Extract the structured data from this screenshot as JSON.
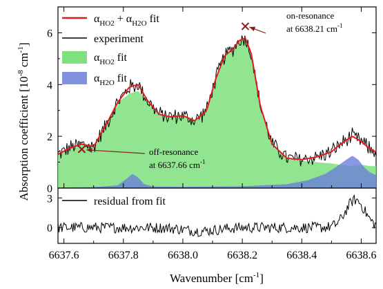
{
  "chart_data": [
    {
      "type": "area",
      "panel": "main",
      "ylabel": "Absorption coefficient [10-8 cm-1]",
      "ylabel_parts": {
        "main": "Absorption coefficient [10",
        "sup1": "-8",
        "mid": " cm",
        "sup2": "-1",
        "end": "]"
      },
      "xlim": [
        6637.58,
        6638.65
      ],
      "ylim": [
        0,
        7
      ],
      "y_ticks": [
        0,
        2,
        4,
        6
      ],
      "y_tick_labels": [
        "0",
        "2",
        "4",
        "6"
      ],
      "legend_placement": "top-left",
      "legend": [
        {
          "key": "total_fit",
          "text": "αHO2 + αH2O fit",
          "color": "#e41a1c"
        },
        {
          "key": "experiment",
          "text": "experiment",
          "color": "#000000"
        },
        {
          "key": "ho2_fit",
          "text": "αHO2 fit",
          "color": "#7ee07e"
        },
        {
          "key": "h2o_fit",
          "text": "αH2O fit",
          "color": "#6b80d9"
        }
      ],
      "series": [
        {
          "name": "αHO2 + αH2O fit",
          "color": "#e41a1c",
          "x": [
            6637.58,
            6637.62,
            6637.66,
            6637.7,
            6637.74,
            6637.78,
            6637.82,
            6637.85,
            6637.88,
            6637.92,
            6637.96,
            6638.0,
            6638.04,
            6638.08,
            6638.11,
            6638.14,
            6638.17,
            6638.19,
            6638.21,
            6638.23,
            6638.26,
            6638.3,
            6638.35,
            6638.4,
            6638.45,
            6638.5,
            6638.53,
            6638.57,
            6638.6,
            6638.63,
            6638.65
          ],
          "y": [
            1.3,
            1.55,
            1.7,
            1.6,
            2.4,
            3.3,
            3.9,
            4.0,
            3.4,
            2.85,
            2.75,
            2.8,
            2.6,
            3.0,
            4.2,
            5.1,
            5.4,
            5.7,
            5.8,
            5.2,
            3.2,
            1.7,
            1.15,
            1.1,
            1.2,
            1.4,
            1.7,
            2.0,
            1.8,
            1.5,
            1.4
          ]
        },
        {
          "name": "αHO2 fit",
          "color": "#7ee07e",
          "x": [
            6637.58,
            6637.62,
            6637.66,
            6637.7,
            6637.74,
            6637.78,
            6637.82,
            6637.85,
            6637.88,
            6637.92,
            6637.96,
            6638.0,
            6638.04,
            6638.08,
            6638.11,
            6638.14,
            6638.17,
            6638.19,
            6638.21,
            6638.23,
            6638.26,
            6638.3,
            6638.35,
            6638.4,
            6638.45,
            6638.5,
            6638.53,
            6638.57,
            6638.6,
            6638.63,
            6638.65
          ],
          "y": [
            1.3,
            1.55,
            1.7,
            1.6,
            2.4,
            3.3,
            3.65,
            3.75,
            3.35,
            2.85,
            2.75,
            2.8,
            2.6,
            3.0,
            4.2,
            5.1,
            5.4,
            5.7,
            5.8,
            5.2,
            3.2,
            1.7,
            1.15,
            1.05,
            1.0,
            0.95,
            0.9,
            0.85,
            0.9,
            0.85,
            0.85
          ]
        },
        {
          "name": "αH2O fit",
          "color": "#6b80d9",
          "x": [
            6637.58,
            6637.7,
            6637.78,
            6637.81,
            6637.83,
            6637.85,
            6637.87,
            6637.9,
            6638.0,
            6638.2,
            6638.35,
            6638.42,
            6638.48,
            6638.52,
            6638.55,
            6638.57,
            6638.59,
            6638.61,
            6638.63,
            6638.65
          ],
          "y": [
            0.02,
            0.04,
            0.1,
            0.35,
            0.55,
            0.4,
            0.15,
            0.06,
            0.05,
            0.07,
            0.15,
            0.3,
            0.55,
            0.85,
            1.1,
            1.25,
            1.1,
            0.8,
            0.6,
            0.5
          ]
        },
        {
          "name": "experiment",
          "color": "#000000",
          "x_start": 6637.58,
          "x_end": 6638.65,
          "noise_amplitude": 0.35,
          "points": 320
        }
      ],
      "annotations": [
        {
          "label_line1": "on-resonance",
          "label_line2": "at 6638.21 cm-1",
          "x": 6638.21,
          "y": 6.25,
          "position": "top-right"
        },
        {
          "label_line1": "off-resonance",
          "label_line2": "at 6637.66 cm-1",
          "x": 6637.66,
          "y": 1.5,
          "position": "center"
        }
      ]
    },
    {
      "type": "line",
      "panel": "residual",
      "xlabel": "Wavenumber [cm-1]",
      "xlabel_parts": {
        "main": "Wavenumber [cm",
        "sup": "-1",
        "end": "]"
      },
      "xlim": [
        6637.58,
        6638.65
      ],
      "ylim": [
        -1.6,
        4.0
      ],
      "y_ticks": [
        0,
        3
      ],
      "y_tick_labels": [
        "0",
        "3"
      ],
      "x_ticks": [
        6637.6,
        6637.8,
        6638.0,
        6638.2,
        6638.4,
        6638.6
      ],
      "x_tick_labels": [
        "6637.6",
        "6637.8",
        "6638.0",
        "6638.2",
        "6638.4",
        "6638.6"
      ],
      "legend": [
        {
          "text": "residual from fit",
          "color": "#000000"
        }
      ],
      "series": [
        {
          "name": "residual from fit",
          "color": "#000000",
          "baseline": 0,
          "bump_center": 6638.58,
          "bump_height": 2.8,
          "noise_amplitude": 0.55,
          "points": 320
        }
      ]
    }
  ],
  "sub": {
    "ho2": "HO2",
    "h2o": "H2O"
  },
  "colors": {
    "axis": "#000000",
    "fit_total": "#e41a1c",
    "ho2_fill": "#7ee07e",
    "h2o_fill": "#6b80d9",
    "marker": "#8b1a1a"
  }
}
